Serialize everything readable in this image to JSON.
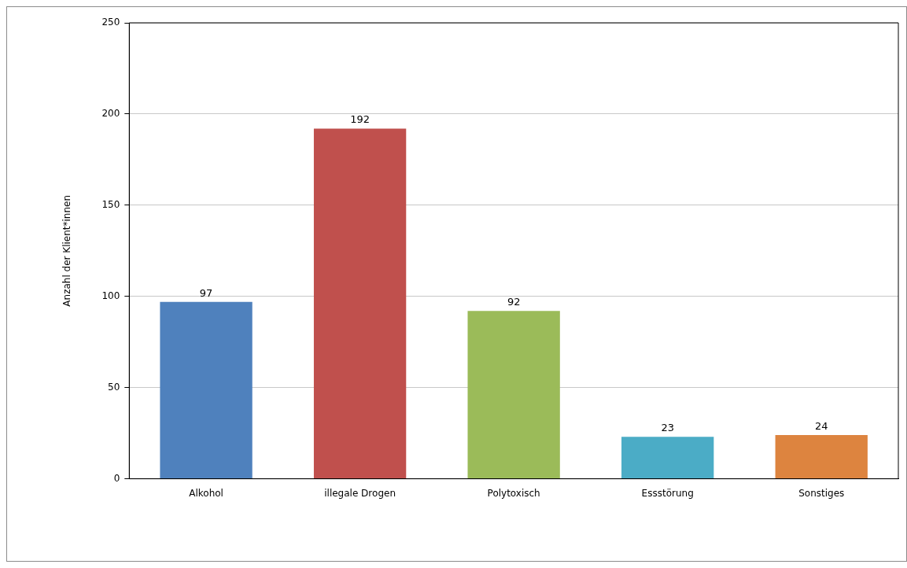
{
  "chart_data": {
    "type": "bar",
    "ylabel": "Anzahl der Klient*innen",
    "categories": [
      "Alkohol",
      "illegale Drogen",
      "Polytoxisch",
      "Essstörung",
      "Sonstiges"
    ],
    "values": [
      97,
      192,
      92,
      23,
      24
    ],
    "colors": [
      "#4f81bd",
      "#c0504d",
      "#9bbb59",
      "#4bacc6",
      "#dd843f"
    ],
    "ylim": [
      0,
      250
    ],
    "yticks": [
      0,
      50,
      100,
      150,
      200,
      250
    ],
    "grid": "y",
    "data_labels": true,
    "legend": false
  }
}
